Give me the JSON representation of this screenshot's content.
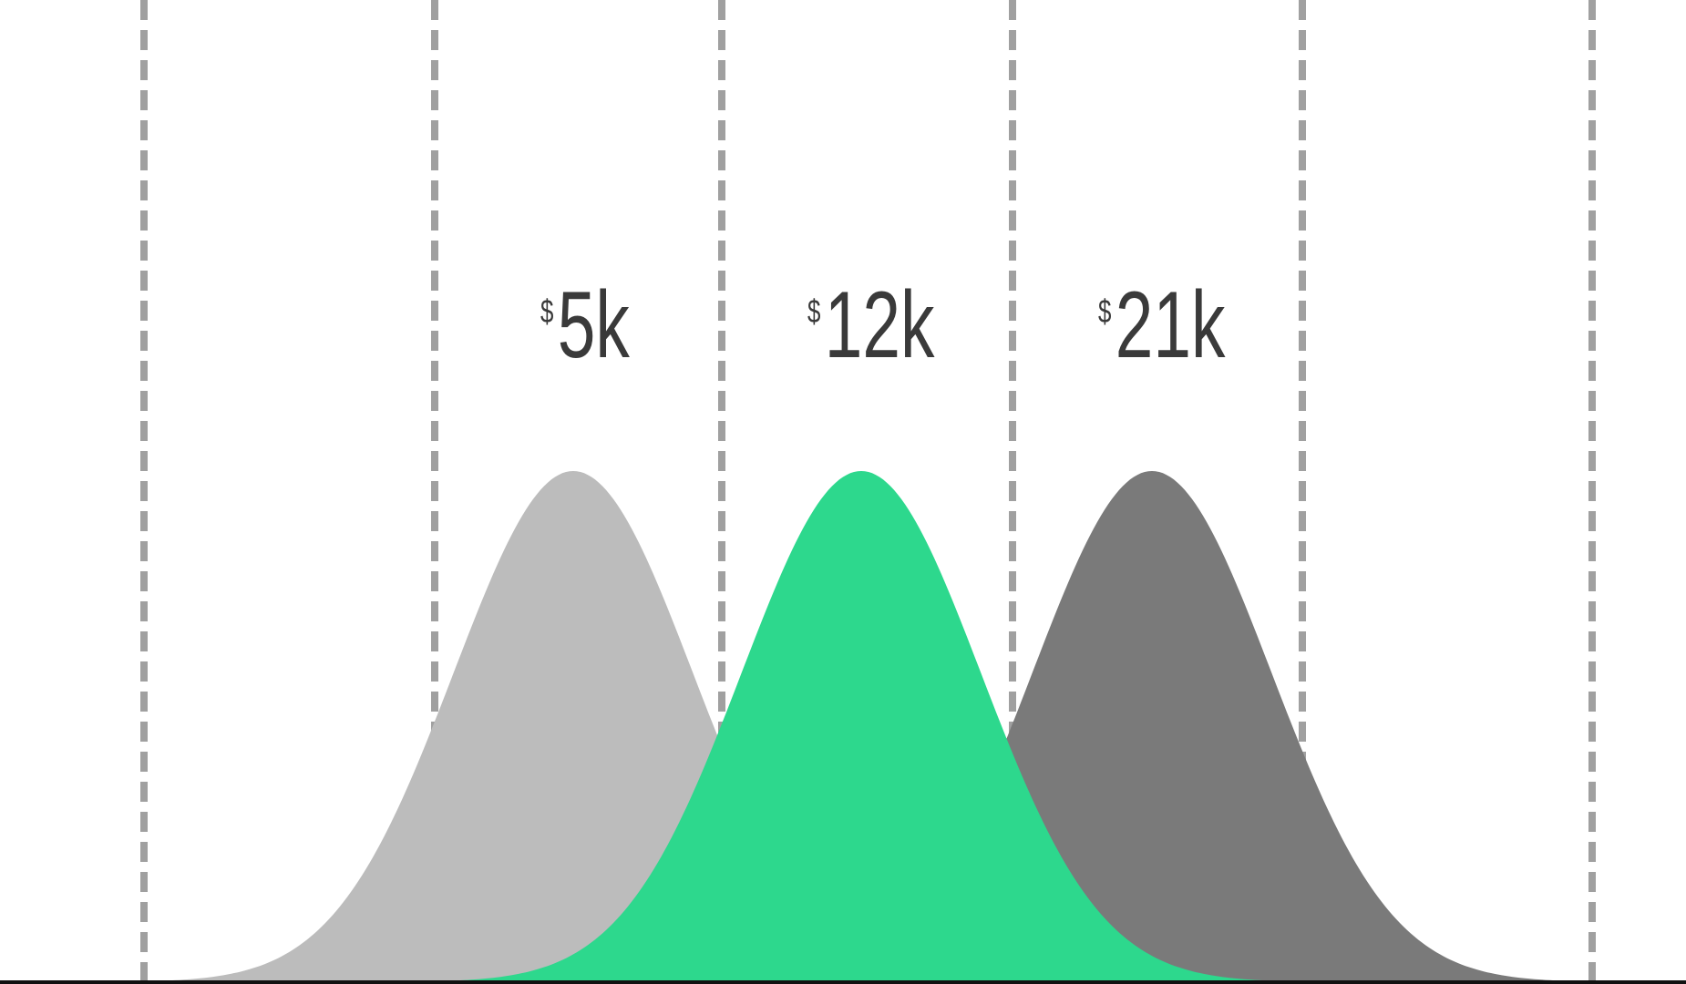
{
  "distributions": [
    {
      "currency": "$",
      "amount": "5k"
    },
    {
      "currency": "$",
      "amount": "12k"
    },
    {
      "currency": "$",
      "amount": "21k"
    }
  ]
}
